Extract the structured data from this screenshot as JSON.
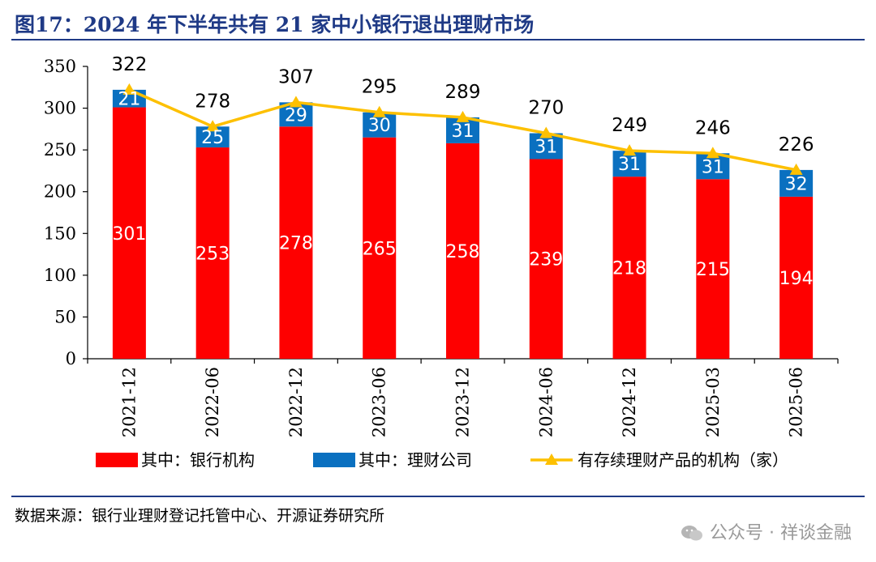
{
  "figure": {
    "title": "图17：2024 年下半年共有 21 家中小银行退出理财市场",
    "source": "数据来源：银行业理财登记托管中心、开源证券研究所",
    "watermark": "公众号 · 祥谈金融"
  },
  "colors": {
    "title": "#1f3a86",
    "bank": "#fe0000",
    "wealth": "#0a70c0",
    "line": "#fdc000"
  },
  "chart_data": {
    "type": "bar",
    "stacked": true,
    "categories": [
      "2021-12",
      "2022-06",
      "2022-12",
      "2023-06",
      "2023-12",
      "2024-06",
      "2024-12",
      "2025-03",
      "2025-06"
    ],
    "series": [
      {
        "name": "其中：银行机构",
        "type": "bar",
        "values": [
          301,
          253,
          278,
          265,
          258,
          239,
          218,
          215,
          194
        ]
      },
      {
        "name": "其中：理财公司",
        "type": "bar",
        "values": [
          21,
          25,
          29,
          30,
          31,
          31,
          31,
          31,
          32
        ]
      },
      {
        "name": "有存续理财产品的机构（家）",
        "type": "line",
        "values": [
          322,
          278,
          307,
          295,
          289,
          270,
          249,
          246,
          226
        ]
      }
    ],
    "ylim": [
      0,
      350
    ],
    "yticks": [
      0,
      50,
      100,
      150,
      200,
      250,
      300,
      350
    ],
    "grid": false,
    "legend": "bottom"
  }
}
